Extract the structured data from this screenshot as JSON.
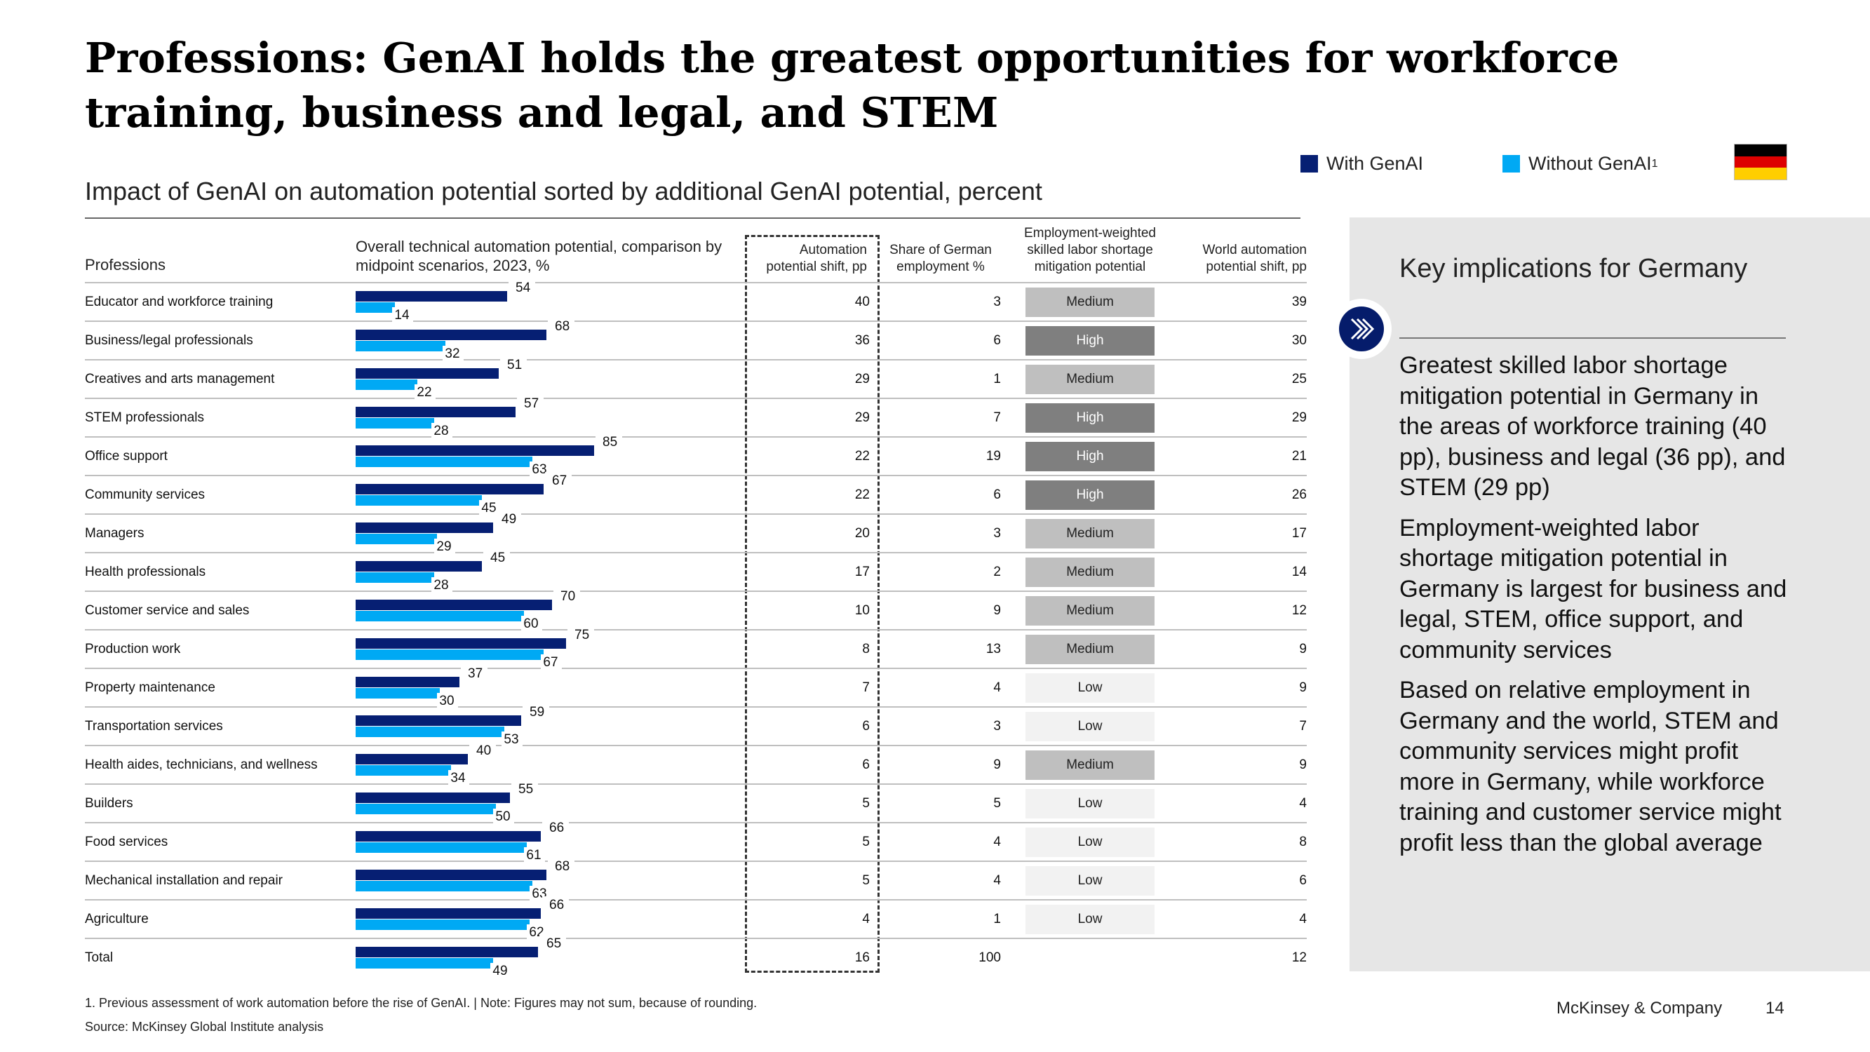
{
  "title": "Professions: GenAI holds the greatest opportunities for workforce training, business and legal, and STEM",
  "subtitle": "Impact of GenAI on automation potential sorted by additional GenAI potential, percent",
  "legend": {
    "with": "With GenAI",
    "without": "Without GenAI",
    "without_sup": "1"
  },
  "colors": {
    "with": "#061f73",
    "without": "#00a9f4",
    "high": "#7f7f7f",
    "medium": "#bfbfbf",
    "low": "#f2f2f2"
  },
  "headers": {
    "professions": "Professions",
    "overall": "Overall technical automation potential, comparison by midpoint scenarios, 2023, %",
    "shift": "Automation potential shift, pp",
    "share": "Share of German employment %",
    "mitigation": "Employment-weighted skilled labor shortage mitigation potential",
    "world": "World automation potential shift, pp"
  },
  "chart_data": {
    "type": "bar",
    "orientation": "horizontal",
    "categories": [
      "Educator and workforce training",
      "Business/legal professionals",
      "Creatives and arts management",
      "STEM professionals",
      "Office support",
      "Community services",
      "Managers",
      "Health professionals",
      "Customer service and sales",
      "Production work",
      "Property maintenance",
      "Transportation services",
      "Health aides, technicians, and wellness",
      "Builders",
      "Food services",
      "Mechanical installation and repair",
      "Agriculture",
      "Total"
    ],
    "series": [
      {
        "name": "With GenAI",
        "values": [
          54,
          68,
          51,
          57,
          85,
          67,
          49,
          45,
          70,
          75,
          37,
          59,
          40,
          55,
          66,
          68,
          66,
          65
        ]
      },
      {
        "name": "Without GenAI",
        "values": [
          14,
          32,
          22,
          28,
          63,
          45,
          29,
          28,
          60,
          67,
          30,
          53,
          34,
          50,
          61,
          63,
          62,
          49
        ]
      }
    ],
    "xlim": [
      0,
      100
    ],
    "xlabel": "Overall technical automation potential, comparison by midpoint scenarios, 2023, %"
  },
  "table": {
    "shift": [
      "40",
      "36",
      "29",
      "29",
      "22",
      "22",
      "20",
      "17",
      "10",
      "8",
      "7",
      "6",
      "6",
      "5",
      "5",
      "5",
      "4",
      "16"
    ],
    "share": [
      "3",
      "6",
      "1",
      "7",
      "19",
      "6",
      "3",
      "2",
      "9",
      "13",
      "4",
      "3",
      "9",
      "5",
      "4",
      "4",
      "1",
      "100"
    ],
    "mitigation": [
      "Medium",
      "High",
      "Medium",
      "High",
      "High",
      "High",
      "Medium",
      "Medium",
      "Medium",
      "Medium",
      "Low",
      "Low",
      "Medium",
      "Low",
      "Low",
      "Low",
      "Low",
      ""
    ],
    "world": [
      "39",
      "30",
      "25",
      "29",
      "21",
      "26",
      "17",
      "14",
      "12",
      "9",
      "9",
      "7",
      "9",
      "4",
      "8",
      "6",
      "4",
      "12"
    ]
  },
  "panel": {
    "title": "Key implications for Germany",
    "bullets": [
      "Greatest skilled labor shortage mitigation potential in Germany in the areas of workforce training (40 pp), business and legal (36 pp), and STEM (29 pp)",
      "Employment-weighted labor shortage mitigation potential in Germany is largest for business and legal, STEM, office support, and community services",
      "Based on relative employment in Germany and the world, STEM and community services might profit more in Germany, while workforce training and customer service might profit less than the global average"
    ]
  },
  "footnote": "1. Previous assessment of work automation before the rise of GenAI. | Note: Figures may not sum, because of rounding.",
  "source": "Source: McKinsey Global Institute analysis",
  "footer": {
    "company": "McKinsey & Company",
    "page": "14"
  }
}
